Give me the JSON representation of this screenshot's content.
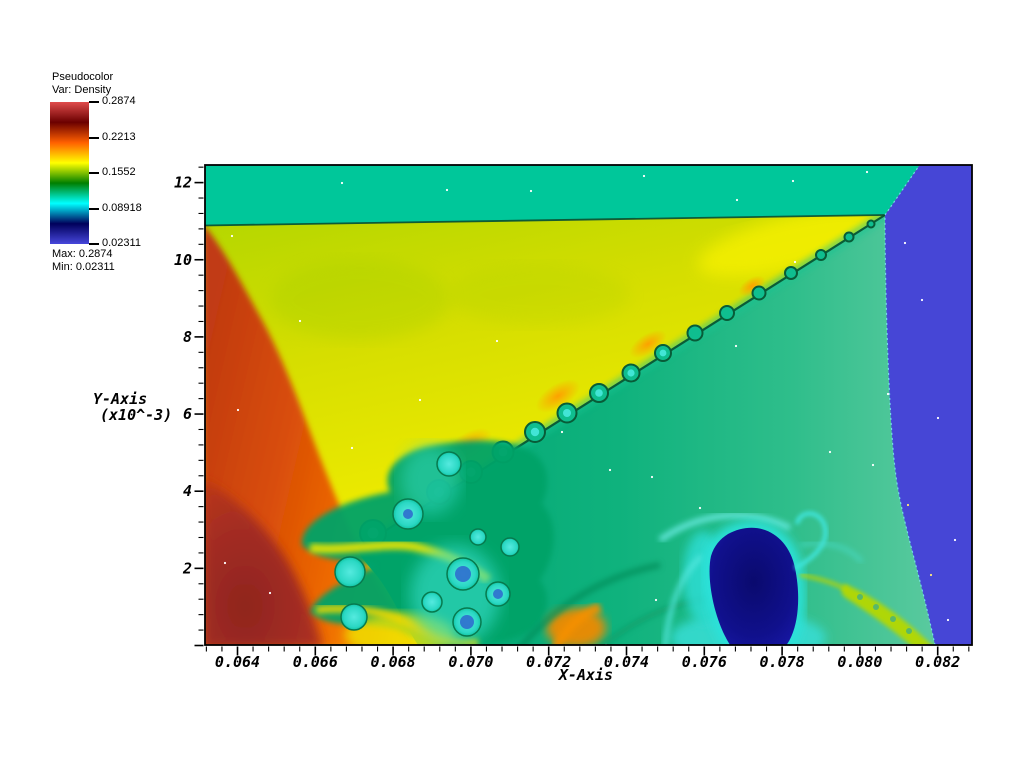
{
  "window": {
    "background": "#ffffff"
  },
  "legend": {
    "title": "Pseudocolor",
    "subtitle": "Var: Density",
    "tick_labels": [
      "0.2874",
      "0.2213",
      "0.1552",
      "0.08918",
      "0.02311"
    ],
    "max_label": "Max: 0.2874",
    "min_label": "Min: 0.02311",
    "colormap_name": "hot_desaturated",
    "colormap_stops": [
      "#E04C4C",
      "#6B0000",
      "#FF6000",
      "#FFFF00",
      "#007F00",
      "#00FFFF",
      "#00005B",
      "#4747DB"
    ]
  },
  "axes": {
    "x": {
      "title": "X-Axis",
      "tick_labels": [
        "0.064",
        "0.066",
        "0.068",
        "0.070",
        "0.072",
        "0.074",
        "0.076",
        "0.078",
        "0.080",
        "0.082"
      ],
      "tick_values": [
        0.064,
        0.066,
        0.068,
        0.07,
        0.072,
        0.074,
        0.076,
        0.078,
        0.08,
        0.082
      ],
      "minor_step": 0.0004
    },
    "y": {
      "title_line1": "Y-Axis",
      "title_line2": "(x10^-3)",
      "tick_labels": [
        "2",
        "4",
        "6",
        "8",
        "10",
        "12"
      ],
      "tick_values": [
        2,
        4,
        6,
        8,
        10,
        12
      ],
      "minor_step": 0.4
    }
  },
  "chart_data": {
    "type": "heatmap",
    "variable": "Density",
    "plot_kind": "pseudocolor",
    "min": 0.02311,
    "max": 0.2874,
    "colormap": "hot_desaturated",
    "xlabel": "X-Axis",
    "ylabel": "Y-Axis (x10^-3)",
    "x_range": [
      0.0632,
      0.0828
    ],
    "y_range": [
      0.0,
      12.45
    ],
    "y_scale_note": "y values are x10^-3",
    "features": [
      "teal uniform band across the top (density ~0.11) ending at a triple point near x=0.0805, y=11",
      "indigo low-density region (~0.023) filling the right edge beyond a near-vertical curved shock at x~0.0805-0.082",
      "yellow region (~0.17) below the top band, chartreuse toward upper left",
      "orange/dark-red high-density wedge (~0.24-0.28) along the left edge, dark red in bottom-left corner",
      "diagonal slip line from (0.0672,0.0) to triple point with Kelvin-Helmholtz vortex rollups, cyan cores",
      "emerald green region (~0.13) below the slip line",
      "turbulent mixing zone in lower left with cyan vortices and steel-blue cores",
      "dark navy blob (~0.04) with bright cyan halo near x=0.0765 at bottom",
      "yellow-green streak with small rollups near bottom right ahead of the shock"
    ]
  }
}
